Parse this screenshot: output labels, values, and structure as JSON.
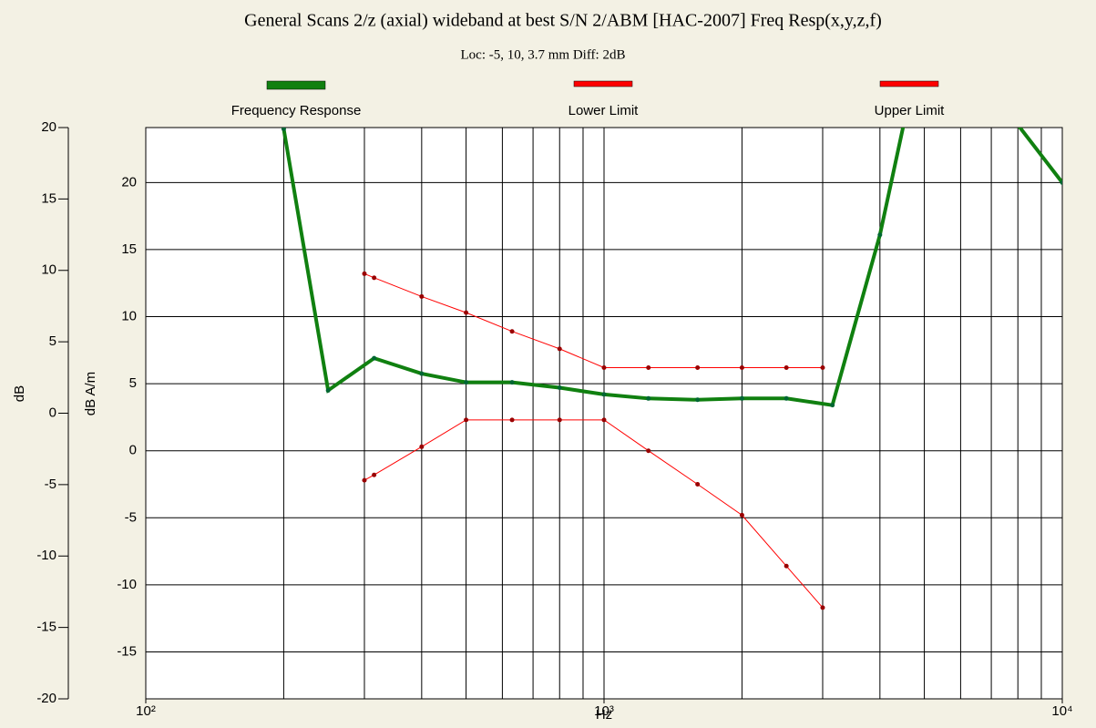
{
  "chart_data": {
    "type": "line",
    "title": "General Scans 2/z (axial) wideband at best S/N 2/ABM [HAC-2007] Freq Resp(x,y,z,f)",
    "subtitle": "Loc: -5, 10, 3.7 mm Diff: 2dB",
    "x_label": "Hz",
    "y_label": "dB",
    "y2_label": "dB A/m",
    "log_x": true,
    "grid": true,
    "legend_position": "top",
    "xlim": [
      100,
      10000
    ],
    "xticks": [
      {
        "value": 100,
        "label": "10²"
      },
      {
        "value": 1000,
        "label": "10³"
      },
      {
        "value": 10000,
        "label": "10⁴"
      }
    ],
    "xgrid": [
      200,
      300,
      400,
      500,
      600,
      700,
      800,
      900,
      1000,
      2000,
      3000,
      4000,
      5000,
      6000,
      7000,
      8000,
      9000
    ],
    "ylim": [
      -20,
      20
    ],
    "yticks": [
      -20,
      -15,
      -10,
      -5,
      0,
      5,
      10,
      15,
      20
    ],
    "y2lim": [
      -18.5,
      24.1
    ],
    "y2ticks": [
      -15,
      -10,
      -5,
      0,
      5,
      10,
      15,
      20
    ],
    "series": [
      {
        "name": "Frequency Response",
        "color": "#108010",
        "axis": "y2",
        "width": 4,
        "x": [
          200,
          250,
          315,
          400,
          500,
          630,
          800,
          1000,
          1250,
          1600,
          2000,
          2500,
          3150,
          4000,
          5000,
          6300,
          8000,
          10000
        ],
        "values": [
          24,
          4.5,
          6.9,
          5.75,
          5.1,
          5.1,
          4.7,
          4.2,
          3.9,
          3.8,
          3.9,
          3.9,
          3.4,
          16.1,
          31.5,
          30,
          24.3,
          20
        ]
      },
      {
        "name": "Lower Limit",
        "color": "#ff0000",
        "axis": "y2",
        "width": 1,
        "x": [
          300,
          315,
          400,
          500,
          630,
          800,
          1000,
          1250,
          1600,
          2000,
          2500,
          3000
        ],
        "values": [
          -2.2,
          -1.8,
          0.3,
          2.3,
          2.3,
          2.3,
          2.3,
          0,
          -2.5,
          -4.8,
          -8.6,
          -11.7
        ]
      },
      {
        "name": "Upper Limit",
        "color": "#ff0000",
        "axis": "y2",
        "width": 1,
        "x": [
          300,
          315,
          400,
          500,
          630,
          800,
          1000,
          1250,
          1600,
          2000,
          2500,
          3000
        ],
        "values": [
          13.2,
          12.9,
          11.5,
          10.3,
          8.9,
          7.6,
          6.2,
          6.2,
          6.2,
          6.2,
          6.2,
          6.2
        ]
      }
    ]
  }
}
